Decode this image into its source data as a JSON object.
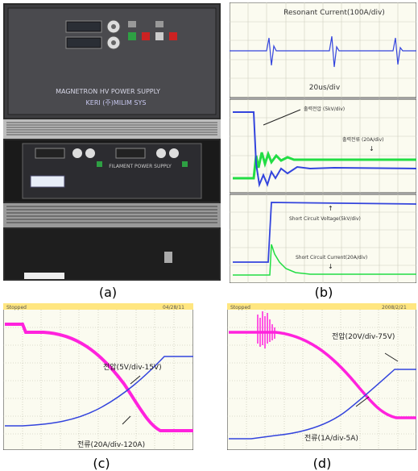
{
  "captions": {
    "a": "(a)",
    "b": "(b)",
    "c": "(c)",
    "d": "(d)"
  },
  "photo": {
    "upper_label_1": "MAGNETRON HV POWER SUPPLY",
    "upper_label_2": "KERI (주)MILIM SYS",
    "lower_label_1": "FILAMENT POWER SUPPLY"
  },
  "scope_b": {
    "top_title": "Resonant Current(100A/div)",
    "top_timebase": "20us/div",
    "mid_label_v": "출력전압 (5kV/div)",
    "mid_label_i": "출력전류 (20A/div)",
    "bot_label_v": "Short Circuit Voltage(5kV/div)",
    "bot_label_i": "Short Circuit Current(20A/div)"
  },
  "scope_c": {
    "header_left": "Stopped",
    "header_right": "04/28/11",
    "label_v": "전압(5V/div-15V)",
    "label_i": "전류(20A/div-120A)"
  },
  "scope_d": {
    "header_left": "Stopped",
    "header_right": "2008/2/21",
    "label_v": "전압(20V/div-75V)",
    "label_i": "전류(1A/div-5A)"
  },
  "colors": {
    "trace_blue": "#3344dd",
    "trace_green": "#22dd44",
    "trace_magenta": "#ff22dd",
    "scope_bg": "#fbfbf0",
    "grid": "#bbbbaa",
    "scope_header": "#ffe680"
  }
}
